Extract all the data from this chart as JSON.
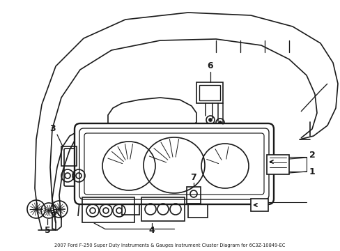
{
  "title": "2007 Ford F-250 Super Duty Instruments & Gauges Instrument Cluster Diagram for 6C3Z-10849-EC",
  "bg_color": "#ffffff",
  "line_color": "#1a1a1a",
  "figsize": [
    4.89,
    3.6
  ],
  "dpi": 100
}
